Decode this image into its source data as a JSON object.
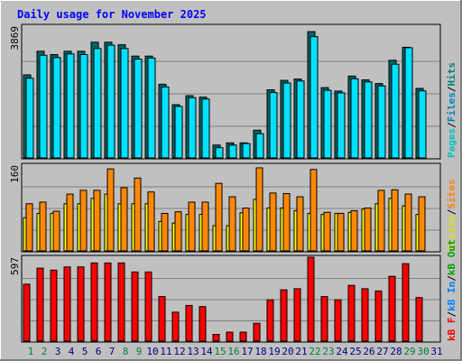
{
  "title": "Daily usage for November 2025",
  "colors": {
    "background": "#c0c0c0",
    "title": "#0000ff",
    "hits_top": "#00e0ff",
    "hits_dark": "#006666",
    "files": "#00c0e0",
    "pages": "#006666",
    "visits": "#ffff00",
    "sites": "#ff8800",
    "kbf": "#ff0000",
    "kbin": "#0080ff",
    "kbout": "#00a000",
    "weekend_day": "#008040",
    "weekday": "#000080",
    "legend_pages": "#00c0c0",
    "legend_files": "#0080c0",
    "legend_hits": "#008080",
    "legend_visits": "#e0e000",
    "legend_sites": "#ff8000",
    "legend_kbout": "#00a000",
    "legend_kbin": "#0080ff",
    "legend_kbf": "#ff0000",
    "legend_sep": "#000000"
  },
  "chart_data": [
    {
      "type": "bar",
      "name": "hits-files-pages",
      "categories": [
        "1",
        "2",
        "3",
        "4",
        "5",
        "6",
        "7",
        "8",
        "9",
        "10",
        "11",
        "12",
        "13",
        "14",
        "15",
        "16",
        "17",
        "18",
        "19",
        "20",
        "21",
        "22",
        "23",
        "24",
        "25",
        "26",
        "27",
        "28",
        "29",
        "30",
        "31"
      ],
      "weekend_days": [
        1,
        2,
        8,
        9,
        15,
        16,
        22,
        23,
        29,
        30
      ],
      "ymax_label": "3869",
      "ylim": [
        0,
        3869
      ],
      "legend": [
        {
          "text": "Pages",
          "color_key": "legend_pages"
        },
        {
          "text": "/",
          "color_key": "legend_sep"
        },
        {
          "text": "Files",
          "color_key": "legend_files"
        },
        {
          "text": "/",
          "color_key": "legend_sep"
        },
        {
          "text": "Hits",
          "color_key": "legend_hits"
        }
      ],
      "series": [
        {
          "name": "Hits",
          "values": [
            2490,
            3198,
            3098,
            3198,
            3198,
            3470,
            3470,
            3393,
            3053,
            3053,
            2209,
            1596,
            1866,
            1822,
            386,
            452,
            452,
            832,
            2043,
            2325,
            2367,
            3787,
            2108,
            2004,
            2454,
            2340,
            2230,
            2929,
            3318,
            2084,
            0
          ]
        },
        {
          "name": "Files",
          "values": [
            2390,
            3078,
            3008,
            3118,
            3098,
            3280,
            3380,
            3278,
            2963,
            2993,
            2130,
            1546,
            1806,
            1766,
            306,
            386,
            432,
            726,
            1960,
            2245,
            2307,
            3636,
            2028,
            1949,
            2374,
            2280,
            2159,
            2808,
            3303,
            2010,
            0
          ]
        },
        {
          "name": "Pages",
          "values": [
            0,
            0,
            0,
            0,
            0,
            0,
            0,
            0,
            0,
            0,
            0,
            0,
            0,
            0,
            0,
            0,
            0,
            0,
            0,
            0,
            0,
            0,
            0,
            0,
            0,
            0,
            0,
            0,
            0,
            0,
            0
          ]
        }
      ]
    },
    {
      "type": "bar",
      "name": "visits-sites",
      "categories": [
        "1",
        "2",
        "3",
        "4",
        "5",
        "6",
        "7",
        "8",
        "9",
        "10",
        "11",
        "12",
        "13",
        "14",
        "15",
        "16",
        "17",
        "18",
        "19",
        "20",
        "21",
        "22",
        "23",
        "24",
        "25",
        "26",
        "27",
        "28",
        "29",
        "30",
        "31"
      ],
      "ymax_label": "160",
      "ylim": [
        0,
        160
      ],
      "legend": [
        {
          "text": "Visits",
          "color_key": "legend_visits"
        },
        {
          "text": "/",
          "color_key": "legend_sep"
        },
        {
          "text": "Sites",
          "color_key": "legend_sites"
        }
      ],
      "series": [
        {
          "name": "Visits",
          "values": [
            62,
            70,
            70,
            88,
            88,
            98,
            106,
            88,
            88,
            88,
            55,
            52,
            68,
            68,
            47,
            47,
            71,
            96,
            80,
            80,
            75,
            70,
            68,
            70,
            72,
            78,
            88,
            98,
            84,
            68,
            0
          ]
        },
        {
          "name": "Sites",
          "values": [
            88,
            91,
            74,
            106,
            113,
            113,
            153,
            118,
            136,
            110,
            70,
            73,
            91,
            91,
            126,
            101,
            80,
            155,
            108,
            107,
            101,
            152,
            72,
            70,
            75,
            80,
            113,
            114,
            106,
            101,
            0
          ]
        }
      ]
    },
    {
      "type": "bar",
      "name": "kbytes",
      "categories": [
        "1",
        "2",
        "3",
        "4",
        "5",
        "6",
        "7",
        "8",
        "9",
        "10",
        "11",
        "12",
        "13",
        "14",
        "15",
        "16",
        "17",
        "18",
        "19",
        "20",
        "21",
        "22",
        "23",
        "24",
        "25",
        "26",
        "27",
        "28",
        "29",
        "30",
        "31"
      ],
      "ymax_label": "597",
      "ylim": [
        0,
        597
      ],
      "legend": [
        {
          "text": "kB F",
          "color_key": "legend_kbf"
        },
        {
          "text": "/",
          "color_key": "legend_sep"
        },
        {
          "text": "kB In",
          "color_key": "legend_kbin"
        },
        {
          "text": "/",
          "color_key": "legend_sep"
        },
        {
          "text": "kB Out",
          "color_key": "legend_kbout"
        }
      ],
      "series": [
        {
          "name": "kB F",
          "values": [
            405,
            519,
            505,
            528,
            528,
            556,
            556,
            556,
            492,
            492,
            317,
            206,
            254,
            246,
            48,
            64,
            64,
            127,
            294,
            365,
            373,
            597,
            317,
            294,
            397,
            373,
            357,
            461,
            551,
            310,
            0
          ]
        }
      ]
    }
  ]
}
